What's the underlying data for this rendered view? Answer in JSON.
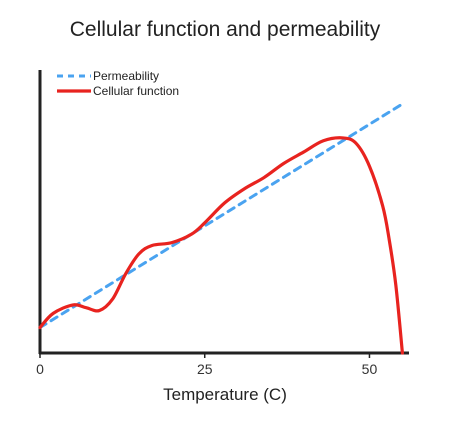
{
  "chart_data": {
    "type": "line",
    "title": "Cellular function and permeability",
    "xlabel": "Temperature (C)",
    "ylabel": "",
    "xlim": [
      0,
      56
    ],
    "ylim": [
      0,
      100
    ],
    "x_ticks": [
      {
        "value": 0,
        "label": "0"
      },
      {
        "value": 25,
        "label": "25"
      },
      {
        "value": 50,
        "label": "50"
      }
    ],
    "legend_position": "top-left",
    "grid": false,
    "series": [
      {
        "name": "Permeability",
        "style": "dashed",
        "color": "#4aa3f0",
        "x": [
          0,
          55
        ],
        "y": [
          9,
          88
        ]
      },
      {
        "name": "Cellular function",
        "style": "solid",
        "color": "#e8231f",
        "x": [
          0,
          2,
          5,
          7,
          9,
          11,
          13,
          15,
          17,
          20,
          23,
          25,
          28,
          31,
          34,
          37,
          40,
          43,
          46,
          48,
          50,
          52,
          53,
          54,
          55
        ],
        "y": [
          9,
          14,
          17,
          16,
          15,
          19,
          28,
          35,
          38,
          39,
          42,
          46,
          53,
          58,
          62,
          67,
          71,
          75,
          76,
          74,
          66,
          52,
          40,
          24,
          0
        ]
      }
    ]
  }
}
